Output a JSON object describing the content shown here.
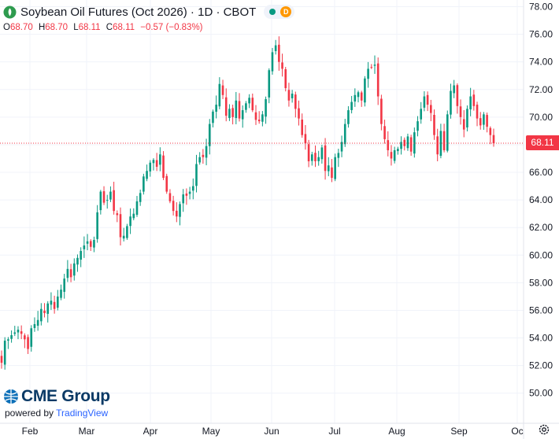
{
  "header": {
    "title": "Soybean Oil Futures (Oct 2026) · 1D · CBOT",
    "delay_badge": "D"
  },
  "ohlc": {
    "o_label": "O",
    "o_value": "68.70",
    "h_label": "H",
    "h_value": "68.70",
    "l_label": "L",
    "l_value": "68.11",
    "c_label": "C",
    "c_value": "68.11",
    "change": "−0.57 (−0.83%)"
  },
  "branding": {
    "logo_text": "CME Group",
    "powered_prefix": "powered by ",
    "powered_brand": "TradingView"
  },
  "colors": {
    "up": "#089981",
    "down": "#f23645",
    "grid": "#f0f3fa",
    "axis_text": "#131722"
  },
  "icons": {
    "settings": "gear-icon",
    "logo": "globe-icon",
    "symbol": "contract-icon"
  },
  "chart_data": {
    "type": "candlestick",
    "symbol": "Soybean Oil Futures (Oct 2026)",
    "interval": "1D",
    "exchange": "CBOT",
    "ylim": [
      49.3,
      78.2
    ],
    "y_ticks": [
      "50.00",
      "52.00",
      "54.00",
      "56.00",
      "58.00",
      "60.00",
      "62.00",
      "64.00",
      "66.00",
      "68.00",
      "70.00",
      "72.00",
      "74.00",
      "76.00",
      "78.00"
    ],
    "x_ticks": [
      "Feb",
      "Mar",
      "Apr",
      "May",
      "Jun",
      "Jul",
      "Aug",
      "Sep",
      "Oc"
    ],
    "last_price": "68.11",
    "last_price_value": 68.11,
    "closes": [
      52.2,
      53.8,
      53.9,
      54.2,
      54.4,
      54.6,
      54.3,
      53.9,
      53.2,
      54.7,
      55.0,
      55.3,
      56.1,
      55.8,
      56.5,
      56.7,
      56.1,
      57.0,
      57.5,
      58.3,
      59.0,
      58.4,
      59.4,
      59.8,
      60.3,
      60.7,
      61.0,
      60.6,
      61.1,
      63.1,
      64.6,
      63.8,
      64.0,
      64.6,
      63.2,
      62.9,
      61.3,
      61.4,
      62.1,
      62.8,
      63.0,
      63.9,
      64.5,
      65.7,
      66.1,
      66.7,
      66.9,
      66.4,
      67.3,
      65.6,
      64.6,
      63.9,
      63.2,
      62.8,
      63.7,
      64.4,
      64.3,
      64.6,
      65.0,
      66.6,
      67.1,
      67.1,
      67.9,
      69.5,
      70.4,
      70.9,
      72.4,
      71.6,
      70.1,
      70.6,
      70.0,
      71.2,
      69.9,
      70.5,
      71.0,
      71.4,
      70.5,
      69.8,
      69.7,
      70.2,
      71.3,
      73.4,
      74.7,
      75.2,
      74.0,
      73.5,
      72.1,
      71.2,
      71.7,
      70.6,
      69.9,
      68.7,
      68.1,
      66.8,
      67.3,
      66.8,
      67.1,
      67.8,
      66.1,
      66.5,
      65.6,
      67.1,
      67.4,
      68.2,
      69.5,
      70.5,
      71.1,
      71.6,
      71.8,
      71.2,
      72.8,
      73.5,
      73.6,
      73.8,
      71.5,
      69.5,
      68.4,
      67.6,
      67.0,
      67.6,
      67.7,
      68.2,
      67.9,
      68.6,
      67.5,
      68.9,
      69.7,
      70.6,
      71.5,
      70.9,
      70.3,
      68.7,
      67.3,
      69.0,
      67.6,
      70.2,
      71.9,
      72.3,
      70.8,
      70.0,
      69.1,
      70.6,
      71.5,
      70.8,
      69.9,
      69.4,
      70.2,
      69.3,
      68.7,
      68.11
    ],
    "annotation": "Last price 68.11 shown with dotted horizontal line"
  }
}
